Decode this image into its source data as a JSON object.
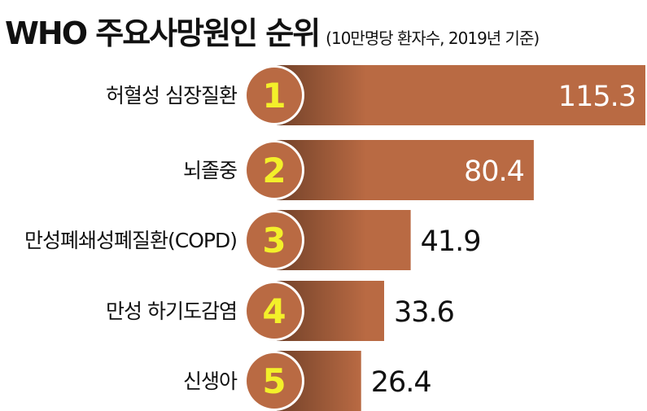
{
  "title": "WHO 주요사망원인 순위",
  "subtitle": "(10만명당 환자수, 2019년 기준)",
  "colors": {
    "bar": "#b96a43",
    "circle": "#b96a43",
    "rank_text": "#f3f02a",
    "label_text": "#111111",
    "value_inside": "#ffffff"
  },
  "chart_data": {
    "type": "bar",
    "orientation": "horizontal",
    "title": "WHO 주요사망원인 순위",
    "subtitle": "(10만명당 환자수, 2019년 기준)",
    "ranks": [
      "1",
      "2",
      "3",
      "4",
      "5"
    ],
    "categories": [
      "허혈성 심장질환",
      "뇌졸중",
      "만성폐쇄성폐질환(COPD)",
      "만성 하기도감염",
      "신생아"
    ],
    "values": [
      115.3,
      80.4,
      41.9,
      33.6,
      26.4
    ],
    "value_labels": [
      "115.3",
      "80.4",
      "41.9",
      "33.6",
      "26.4"
    ],
    "xlim": [
      0,
      115.3
    ],
    "grid": false,
    "legend": "none"
  }
}
